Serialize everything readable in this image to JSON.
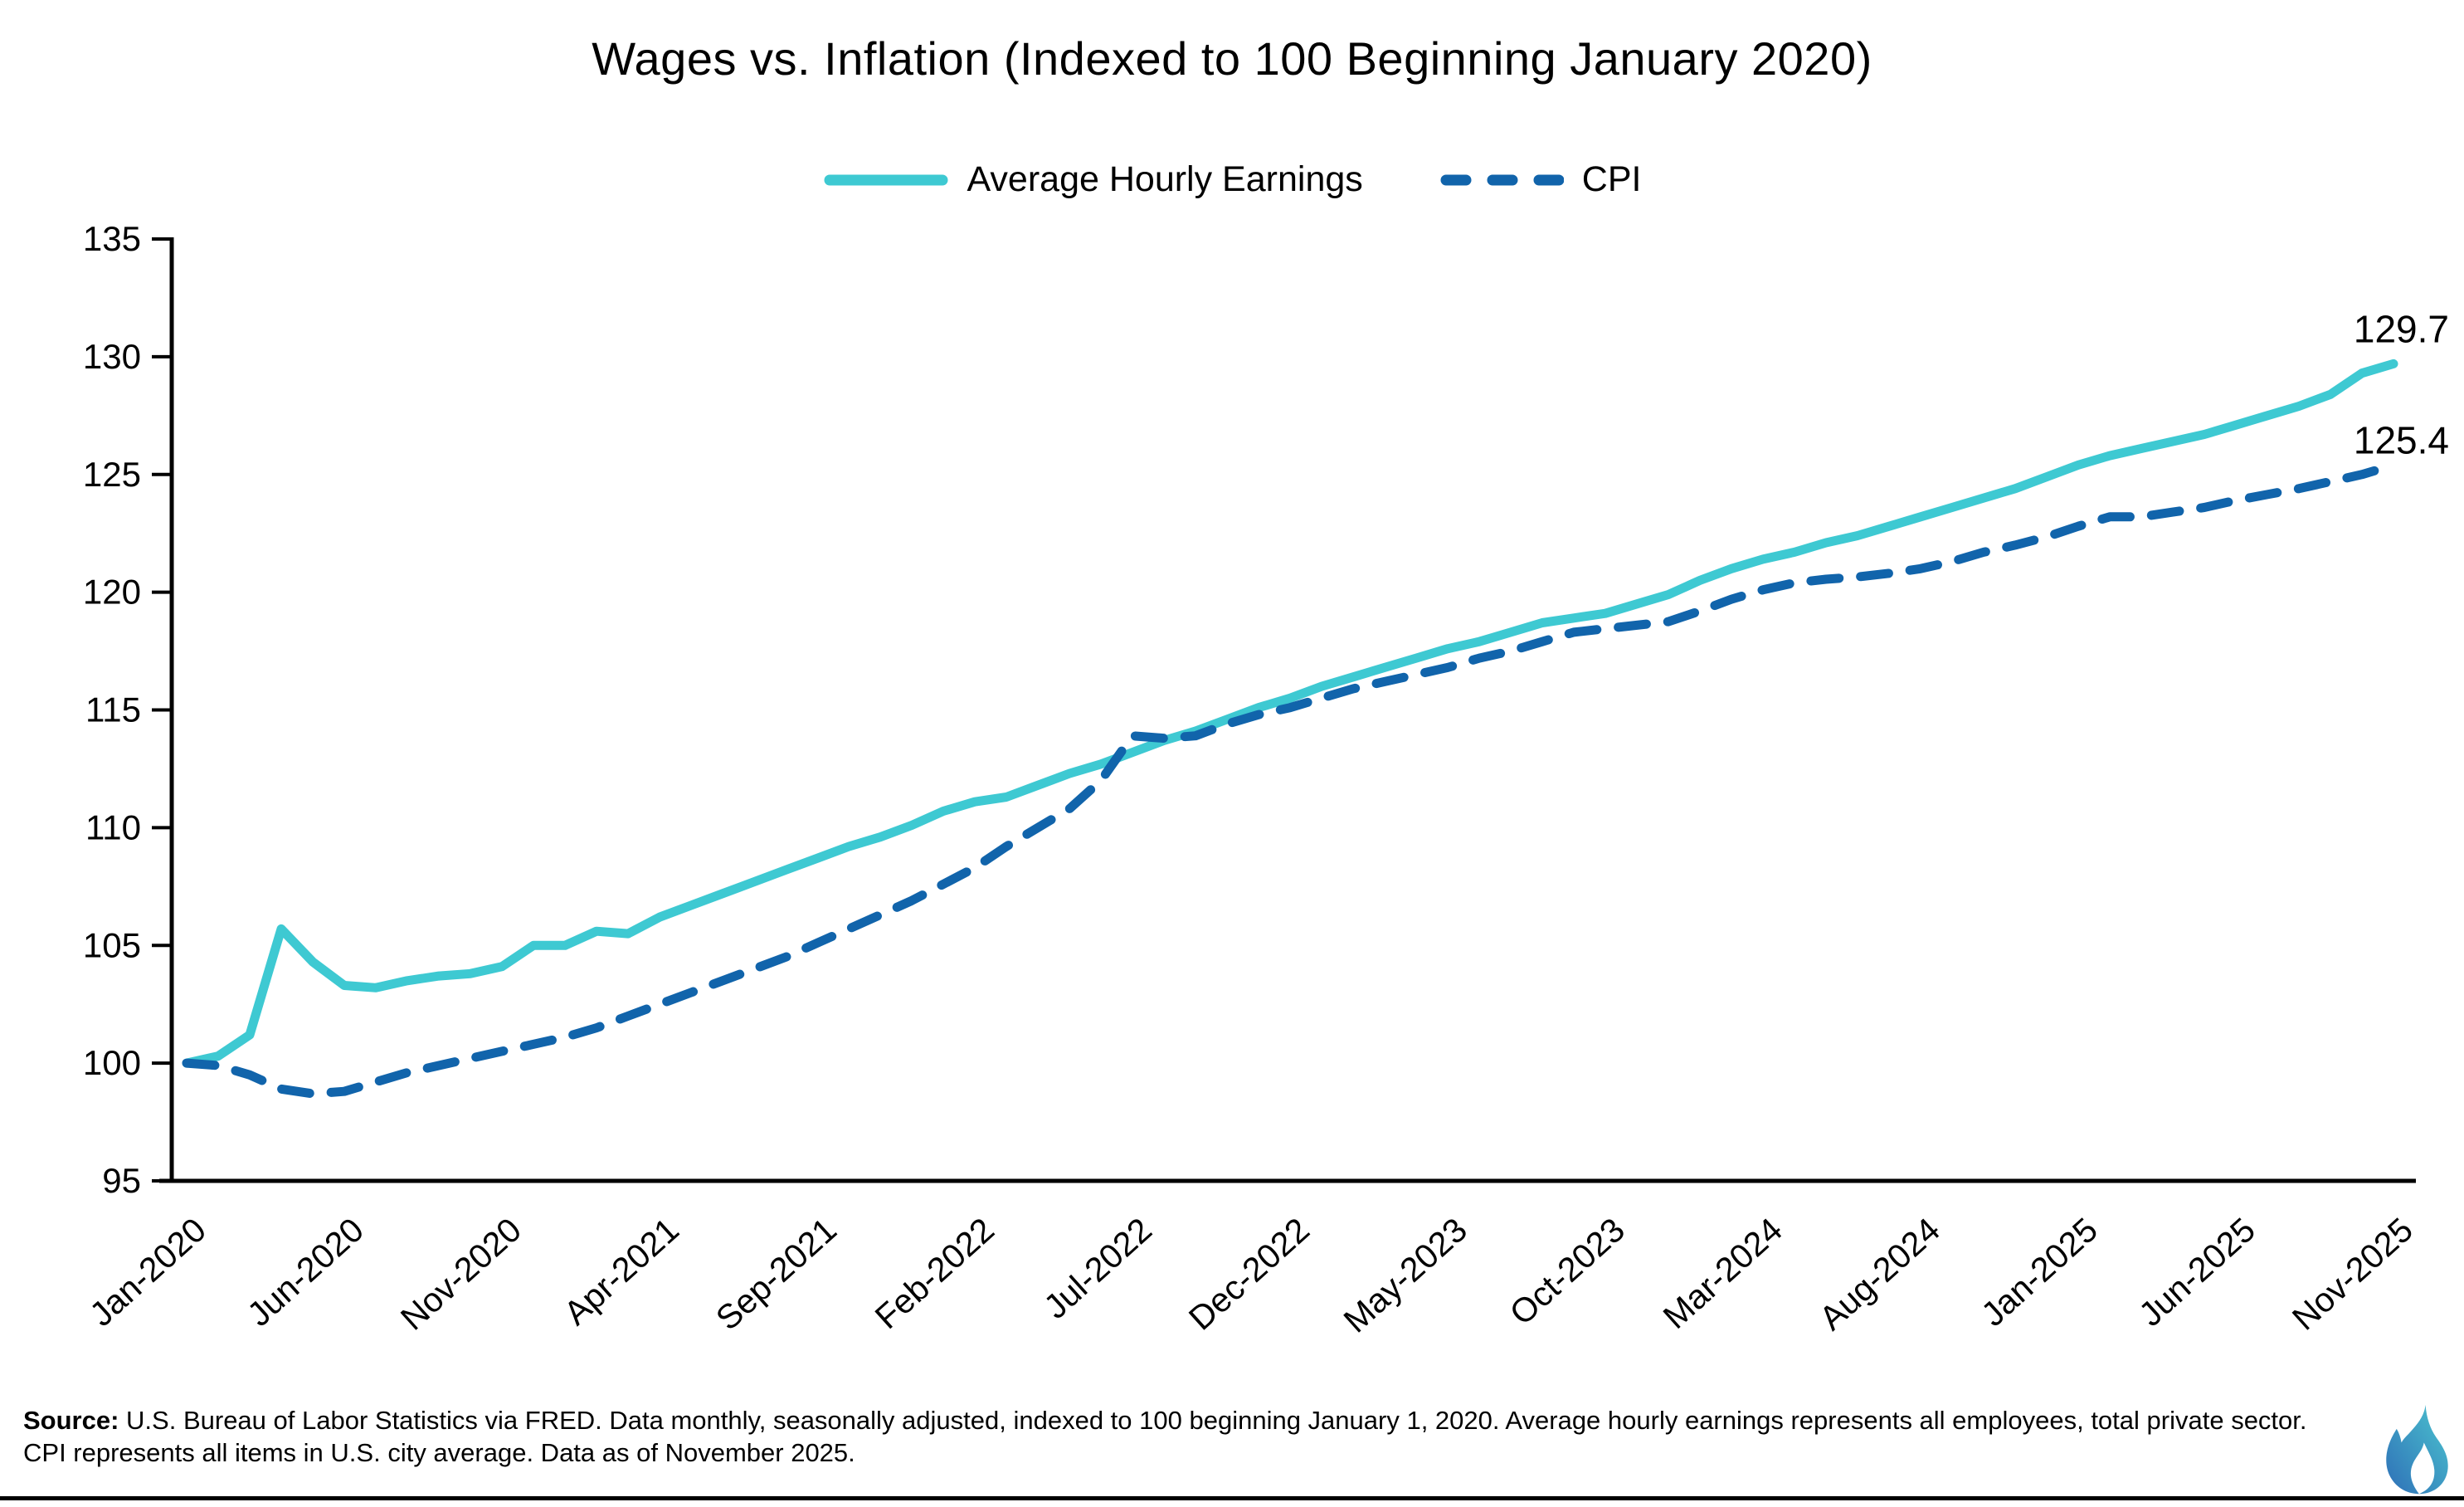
{
  "title": "Wages vs. Inflation (Indexed to 100 Beginning January 2020)",
  "legend": [
    {
      "label": "Average Hourly Earnings",
      "style": "solid",
      "color": "#3EC9D2"
    },
    {
      "label": "CPI",
      "style": "dashed",
      "color": "#1164AB"
    }
  ],
  "end_labels": {
    "ahe": "129.7",
    "cpi": "125.4"
  },
  "source": {
    "prefix": "Source:",
    "text": "U.S. Bureau of Labor Statistics via FRED. Data monthly, seasonally adjusted, indexed to 100 beginning January 1, 2020. Average hourly earnings represents all employees, total private sector. CPI represents all items in U.S. city average. Data as of November 2025."
  },
  "colors": {
    "ahe_line": "#3EC9D2",
    "cpi_line": "#1164AB",
    "axis": "#000000",
    "text": "#000000",
    "logo_blue": "#2E6FB7",
    "logo_teal": "#4CC4CF"
  },
  "chart_data": {
    "type": "line",
    "title": "Wages vs. Inflation (Indexed to 100 Beginning January 2020)",
    "xlabel": "",
    "ylabel": "",
    "ylim": [
      95,
      135
    ],
    "ytick_step": 5,
    "y_tick_labels": [
      "95",
      "100",
      "105",
      "110",
      "115",
      "120",
      "125",
      "130",
      "135"
    ],
    "x_tick_labels": [
      "Jan-2020",
      "Jun-2020",
      "Nov-2020",
      "Apr-2021",
      "Sep-2021",
      "Feb-2022",
      "Jul-2022",
      "Dec-2022",
      "May-2023",
      "Oct-2023",
      "Mar-2024",
      "Aug-2024",
      "Jan-2025",
      "Jun-2025",
      "Nov-2025"
    ],
    "grid": false,
    "legend_position": "top",
    "categories": [
      "Jan-2020",
      "Feb-2020",
      "Mar-2020",
      "Apr-2020",
      "May-2020",
      "Jun-2020",
      "Jul-2020",
      "Aug-2020",
      "Sep-2020",
      "Oct-2020",
      "Nov-2020",
      "Dec-2020",
      "Jan-2021",
      "Feb-2021",
      "Mar-2021",
      "Apr-2021",
      "May-2021",
      "Jun-2021",
      "Jul-2021",
      "Aug-2021",
      "Sep-2021",
      "Oct-2021",
      "Nov-2021",
      "Dec-2021",
      "Jan-2022",
      "Feb-2022",
      "Mar-2022",
      "Apr-2022",
      "May-2022",
      "Jun-2022",
      "Jul-2022",
      "Aug-2022",
      "Sep-2022",
      "Oct-2022",
      "Nov-2022",
      "Dec-2022",
      "Jan-2023",
      "Feb-2023",
      "Mar-2023",
      "Apr-2023",
      "May-2023",
      "Jun-2023",
      "Jul-2023",
      "Aug-2023",
      "Sep-2023",
      "Oct-2023",
      "Nov-2023",
      "Dec-2023",
      "Jan-2024",
      "Feb-2024",
      "Mar-2024",
      "Apr-2024",
      "May-2024",
      "Jun-2024",
      "Jul-2024",
      "Aug-2024",
      "Sep-2024",
      "Oct-2024",
      "Nov-2024",
      "Dec-2024",
      "Jan-2025",
      "Feb-2025",
      "Mar-2025",
      "Apr-2025",
      "May-2025",
      "Jun-2025",
      "Jul-2025",
      "Aug-2025",
      "Sep-2025",
      "Oct-2025",
      "Nov-2025"
    ],
    "series": [
      {
        "name": "Average Hourly Earnings",
        "color": "#3EC9D2",
        "dash": false,
        "end_label": "129.7",
        "values": [
          100.0,
          100.3,
          101.2,
          105.7,
          104.3,
          103.3,
          103.2,
          103.5,
          103.7,
          103.8,
          104.1,
          105.0,
          105.0,
          105.6,
          105.5,
          106.2,
          106.7,
          107.2,
          107.7,
          108.2,
          108.7,
          109.2,
          109.6,
          110.1,
          110.7,
          111.1,
          111.3,
          111.8,
          112.3,
          112.7,
          113.2,
          113.7,
          114.1,
          114.6,
          115.1,
          115.5,
          116.0,
          116.4,
          116.8,
          117.2,
          117.6,
          117.9,
          118.3,
          118.7,
          118.9,
          119.1,
          119.5,
          119.9,
          120.5,
          121.0,
          121.4,
          121.7,
          122.1,
          122.4,
          122.8,
          123.2,
          123.6,
          124.0,
          124.4,
          124.9,
          125.4,
          125.8,
          126.1,
          126.4,
          126.7,
          127.1,
          127.5,
          127.9,
          128.4,
          129.3,
          129.7
        ]
      },
      {
        "name": "CPI",
        "color": "#1164AB",
        "dash": true,
        "end_label": "125.4",
        "values": [
          100.0,
          99.9,
          99.5,
          98.9,
          98.7,
          98.8,
          99.2,
          99.6,
          99.9,
          100.2,
          100.5,
          100.8,
          101.1,
          101.5,
          102.0,
          102.5,
          103.0,
          103.5,
          104.0,
          104.5,
          105.1,
          105.7,
          106.3,
          106.9,
          107.6,
          108.3,
          109.2,
          110.0,
          110.8,
          112.0,
          113.9,
          113.8,
          113.9,
          114.4,
          114.8,
          115.1,
          115.5,
          115.9,
          116.2,
          116.5,
          116.8,
          117.2,
          117.5,
          117.9,
          118.3,
          118.45,
          118.6,
          118.75,
          119.2,
          119.7,
          120.1,
          120.4,
          120.55,
          120.65,
          120.8,
          121.0,
          121.3,
          121.7,
          122.0,
          122.35,
          122.8,
          123.2,
          123.2,
          123.4,
          123.6,
          123.9,
          124.15,
          124.4,
          124.7,
          125.0,
          125.4
        ]
      }
    ]
  }
}
